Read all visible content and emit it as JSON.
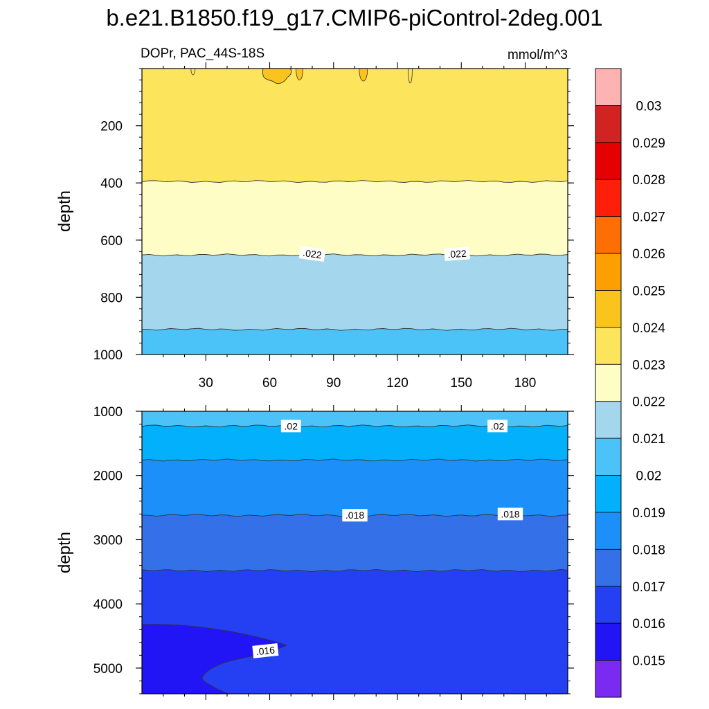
{
  "title": "b.e21.B1850.f19_g17.CMIP6-piControl-2deg.001",
  "chart_data": [
    {
      "type": "contour",
      "panel": "upper",
      "subtitle_left": "DOPr, PAC_44S-18S",
      "subtitle_right": "mmol/m^3",
      "ylabel": "depth",
      "xlim": [
        0,
        200
      ],
      "ylim": [
        1000,
        0
      ],
      "x_ticks": [
        30,
        60,
        90,
        120,
        150,
        180
      ],
      "y_ticks": [
        200,
        400,
        600,
        800,
        1000
      ],
      "bands": [
        {
          "value_range": [
            0.023,
            0.024
          ],
          "color": "#fce45c",
          "depth_top": 0,
          "depth_bottom": 395
        },
        {
          "value_range": [
            0.022,
            0.023
          ],
          "color": "#fefdc6",
          "depth_top": 395,
          "depth_bottom": 652
        },
        {
          "value_range": [
            0.021,
            0.022
          ],
          "color": "#a4d6ee",
          "depth_top": 652,
          "depth_bottom": 912
        },
        {
          "value_range": [
            0.02,
            0.021
          ],
          "color": "#4cc3f8",
          "depth_top": 912,
          "depth_bottom": 1000
        }
      ],
      "patches": [
        {
          "value_range": [
            0.024,
            0.025
          ],
          "color": "#fbc41d",
          "x_center": 65,
          "depth_top": 0,
          "depth_bottom": 55
        }
      ],
      "contour_labels": [
        {
          "text": ".022",
          "x": 80,
          "depth": 648
        },
        {
          "text": ".022",
          "x": 148,
          "depth": 648
        }
      ]
    },
    {
      "type": "contour",
      "panel": "lower",
      "ylabel": "depth",
      "xlim": [
        0,
        200
      ],
      "ylim": [
        5400,
        1000
      ],
      "y_ticks": [
        1000,
        2000,
        3000,
        4000,
        5000
      ],
      "bands": [
        {
          "value_range": [
            0.02,
            0.021
          ],
          "color": "#4cc3f8",
          "depth_top": 1000,
          "depth_bottom": 1230
        },
        {
          "value_range": [
            0.019,
            0.02
          ],
          "color": "#02b0fb",
          "depth_top": 1230,
          "depth_bottom": 1760
        },
        {
          "value_range": [
            0.018,
            0.019
          ],
          "color": "#1c8ff8",
          "depth_top": 1760,
          "depth_bottom": 2620
        },
        {
          "value_range": [
            0.017,
            0.018
          ],
          "color": "#3471e8",
          "depth_top": 2620,
          "depth_bottom": 3480
        },
        {
          "value_range": [
            0.016,
            0.017
          ],
          "color": "#2540f2",
          "depth_top": 3480,
          "depth_bottom": 5400
        }
      ],
      "patches": [
        {
          "value_range": [
            0.015,
            0.016
          ],
          "color": "#2115f5",
          "x_range": [
            0,
            68
          ],
          "depth_top": 4320,
          "depth_bottom": 5400
        }
      ],
      "contour_labels": [
        {
          "text": ".02",
          "x": 70,
          "depth": 1230
        },
        {
          "text": ".02",
          "x": 167,
          "depth": 1230
        },
        {
          "text": ".018",
          "x": 100,
          "depth": 2620
        },
        {
          "text": ".018",
          "x": 173,
          "depth": 2600
        },
        {
          "text": ".016",
          "x": 58,
          "depth": 4730
        }
      ]
    }
  ],
  "colorbar": {
    "labels": [
      "0.015",
      "0.016",
      "0.017",
      "0.018",
      "0.019",
      "0.02",
      "0.021",
      "0.022",
      "0.023",
      "0.024",
      "0.025",
      "0.026",
      "0.027",
      "0.028",
      "0.029",
      "0.03"
    ],
    "colors": [
      "#7b2af2",
      "#2115f5",
      "#2540f2",
      "#3471e8",
      "#1c8ff8",
      "#02b0fb",
      "#4cc3f8",
      "#a4d6ee",
      "#fefdc6",
      "#fce45c",
      "#fbc41d",
      "#fd9f01",
      "#fd6e05",
      "#fe1e0a",
      "#e50001",
      "#d22323",
      "#feb3b3"
    ]
  }
}
